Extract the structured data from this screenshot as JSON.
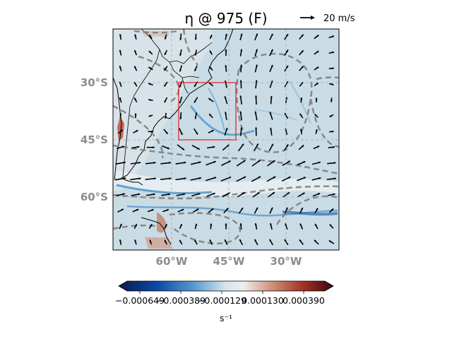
{
  "figure": {
    "title": "η @ 975 (F)",
    "quiver_key": {
      "label": "20 m/s"
    },
    "lat_ticks": [
      "30°S",
      "45°S",
      "60°S"
    ],
    "lon_ticks": [
      "60°W",
      "45°W",
      "30°W"
    ],
    "colorbar": {
      "tick_labels": [
        "−0.000649",
        "−0.000389",
        "−0.000129",
        "0.000130",
        "0.000390"
      ],
      "unit": "s⁻¹",
      "colors": [
        "#0b1a4a",
        "#0a4aa8",
        "#5f9ecf",
        "#d7e6ee",
        "#eeeeee",
        "#d39a83",
        "#a03222",
        "#3b0612"
      ]
    },
    "region_box": {
      "color": "#e31a1c"
    },
    "gridline_color": "#9a9a9a",
    "contour_color": "#808080"
  }
}
